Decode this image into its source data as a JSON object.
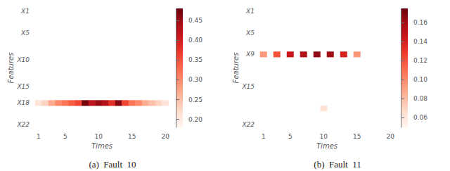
{
  "chart_data": [
    {
      "type": "heatmap",
      "title": "(a)  Fault  10",
      "xlabel": "Times",
      "ylabel": "Features",
      "grid": false,
      "x": [
        "1",
        null,
        null,
        null,
        "5",
        null,
        null,
        null,
        null,
        "10",
        null,
        null,
        null,
        null,
        "15",
        null,
        null,
        null,
        null,
        "20"
      ],
      "y": [
        "X1",
        null,
        null,
        null,
        "X5",
        null,
        null,
        null,
        null,
        "X10",
        null,
        null,
        null,
        null,
        "X15",
        null,
        null,
        "X18",
        null,
        null,
        null,
        "X22"
      ],
      "values": [
        [
          null,
          null,
          null,
          null,
          null,
          null,
          null,
          null,
          null,
          null,
          null,
          null,
          null,
          null,
          null,
          null,
          null,
          null,
          null,
          null
        ],
        [
          null,
          null,
          null,
          null,
          null,
          null,
          null,
          null,
          null,
          null,
          null,
          null,
          null,
          null,
          null,
          null,
          null,
          null,
          null,
          null
        ],
        [
          null,
          null,
          null,
          null,
          null,
          null,
          null,
          null,
          null,
          null,
          null,
          null,
          null,
          null,
          null,
          null,
          null,
          null,
          null,
          null
        ],
        [
          null,
          null,
          null,
          null,
          null,
          null,
          null,
          null,
          null,
          null,
          null,
          null,
          null,
          null,
          null,
          null,
          null,
          null,
          null,
          null
        ],
        [
          null,
          null,
          null,
          null,
          null,
          null,
          null,
          null,
          null,
          null,
          null,
          null,
          null,
          null,
          null,
          null,
          null,
          null,
          null,
          null
        ],
        [
          null,
          null,
          null,
          null,
          null,
          null,
          null,
          null,
          null,
          null,
          null,
          null,
          null,
          null,
          null,
          null,
          null,
          null,
          null,
          null
        ],
        [
          null,
          null,
          null,
          null,
          null,
          null,
          null,
          null,
          null,
          null,
          null,
          null,
          null,
          null,
          null,
          null,
          null,
          null,
          null,
          null
        ],
        [
          null,
          null,
          null,
          null,
          null,
          null,
          null,
          null,
          null,
          null,
          null,
          null,
          null,
          null,
          null,
          null,
          null,
          null,
          null,
          null
        ],
        [
          null,
          null,
          null,
          null,
          null,
          null,
          null,
          null,
          null,
          null,
          null,
          null,
          null,
          null,
          null,
          null,
          null,
          null,
          null,
          null
        ],
        [
          null,
          null,
          null,
          null,
          null,
          null,
          null,
          null,
          null,
          null,
          null,
          null,
          null,
          null,
          null,
          null,
          null,
          null,
          null,
          null
        ],
        [
          null,
          null,
          null,
          null,
          null,
          null,
          null,
          null,
          null,
          null,
          null,
          null,
          null,
          null,
          null,
          null,
          null,
          null,
          null,
          null
        ],
        [
          null,
          null,
          null,
          null,
          null,
          null,
          null,
          null,
          null,
          null,
          null,
          null,
          null,
          null,
          null,
          null,
          null,
          null,
          null,
          null
        ],
        [
          null,
          null,
          null,
          null,
          null,
          null,
          null,
          null,
          null,
          null,
          null,
          null,
          null,
          null,
          null,
          null,
          null,
          null,
          null,
          null
        ],
        [
          null,
          null,
          null,
          null,
          null,
          null,
          null,
          null,
          null,
          null,
          null,
          null,
          null,
          null,
          null,
          null,
          null,
          null,
          null,
          null
        ],
        [
          null,
          null,
          null,
          null,
          null,
          null,
          null,
          null,
          null,
          null,
          null,
          null,
          null,
          null,
          null,
          null,
          null,
          null,
          null,
          null
        ],
        [
          null,
          null,
          null,
          null,
          null,
          null,
          null,
          null,
          null,
          null,
          null,
          null,
          null,
          null,
          null,
          null,
          null,
          null,
          null,
          null
        ],
        [
          null,
          null,
          null,
          null,
          null,
          null,
          null,
          null,
          null,
          null,
          null,
          null,
          null,
          null,
          null,
          null,
          null,
          null,
          null,
          null
        ],
        [
          0.21,
          0.23,
          0.27,
          0.3,
          0.32,
          0.34,
          0.36,
          0.47,
          0.42,
          0.45,
          0.43,
          0.38,
          0.46,
          0.36,
          0.32,
          0.3,
          0.27,
          0.25,
          0.23,
          0.21
        ],
        [
          null,
          null,
          null,
          null,
          null,
          null,
          null,
          null,
          null,
          null,
          null,
          null,
          null,
          null,
          null,
          null,
          null,
          null,
          null,
          null
        ],
        [
          null,
          null,
          null,
          null,
          null,
          null,
          null,
          null,
          null,
          null,
          null,
          null,
          null,
          null,
          null,
          null,
          null,
          null,
          null,
          null
        ],
        [
          null,
          null,
          null,
          null,
          null,
          null,
          null,
          null,
          null,
          null,
          null,
          null,
          null,
          null,
          null,
          null,
          null,
          null,
          null,
          null
        ],
        [
          null,
          null,
          null,
          null,
          null,
          null,
          null,
          null,
          null,
          null,
          null,
          null,
          null,
          null,
          null,
          null,
          null,
          null,
          null,
          null
        ]
      ],
      "color_range": [
        0.18,
        0.48
      ],
      "color_ticks": [
        {
          "value": 0.2,
          "label": "0.20"
        },
        0.25,
        {
          "value": 0.3,
          "label": "0.30"
        },
        0.35,
        {
          "value": 0.4,
          "label": "0.40"
        },
        0.45
      ]
    },
    {
      "type": "heatmap",
      "title": "(b)  Fault  11",
      "xlabel": "Times",
      "ylabel": "Features",
      "grid": false,
      "x": [
        "1",
        null,
        null,
        null,
        "5",
        null,
        null,
        null,
        null,
        "10",
        null,
        null,
        null,
        null,
        "15",
        null,
        null,
        null,
        null,
        "20"
      ],
      "y": [
        "X1",
        null,
        null,
        null,
        "X5",
        null,
        null,
        null,
        "X9",
        null,
        null,
        null,
        null,
        null,
        "X15",
        null,
        null,
        null,
        null,
        null,
        null,
        "X22"
      ],
      "values": [
        [
          null,
          null,
          null,
          null,
          null,
          null,
          null,
          null,
          null,
          null,
          null,
          null,
          null,
          null,
          null,
          null,
          null,
          null,
          null,
          null
        ],
        [
          null,
          null,
          null,
          null,
          null,
          null,
          null,
          null,
          null,
          null,
          null,
          null,
          null,
          null,
          null,
          null,
          null,
          null,
          null,
          null
        ],
        [
          null,
          null,
          null,
          null,
          null,
          null,
          null,
          null,
          null,
          null,
          null,
          null,
          null,
          null,
          null,
          null,
          null,
          null,
          null,
          null
        ],
        [
          null,
          null,
          null,
          null,
          null,
          null,
          null,
          null,
          null,
          null,
          null,
          null,
          null,
          null,
          null,
          null,
          null,
          null,
          null,
          null
        ],
        [
          null,
          null,
          null,
          null,
          null,
          null,
          null,
          null,
          null,
          null,
          null,
          null,
          null,
          null,
          null,
          null,
          null,
          null,
          null,
          null
        ],
        [
          null,
          null,
          null,
          null,
          null,
          null,
          null,
          null,
          null,
          null,
          null,
          null,
          null,
          null,
          null,
          null,
          null,
          null,
          null,
          null
        ],
        [
          null,
          null,
          null,
          null,
          null,
          null,
          null,
          null,
          null,
          null,
          null,
          null,
          null,
          null,
          null,
          null,
          null,
          null,
          null,
          null
        ],
        [
          null,
          null,
          null,
          null,
          null,
          null,
          null,
          null,
          null,
          null,
          null,
          null,
          null,
          null,
          null,
          null,
          null,
          null,
          null,
          null
        ],
        [
          0.095,
          null,
          0.12,
          null,
          0.145,
          null,
          0.155,
          null,
          0.165,
          null,
          0.16,
          null,
          0.14,
          null,
          0.095,
          null,
          null,
          null,
          null,
          null
        ],
        [
          null,
          null,
          null,
          null,
          null,
          null,
          null,
          null,
          null,
          null,
          null,
          null,
          null,
          null,
          null,
          null,
          null,
          null,
          null,
          null
        ],
        [
          null,
          null,
          null,
          null,
          null,
          null,
          null,
          null,
          null,
          null,
          null,
          null,
          null,
          null,
          null,
          null,
          null,
          null,
          null,
          null
        ],
        [
          null,
          null,
          null,
          null,
          null,
          null,
          null,
          null,
          null,
          null,
          null,
          null,
          null,
          null,
          null,
          null,
          null,
          null,
          null,
          null
        ],
        [
          null,
          null,
          null,
          null,
          null,
          null,
          null,
          null,
          null,
          null,
          null,
          null,
          null,
          null,
          null,
          null,
          null,
          null,
          null,
          null
        ],
        [
          null,
          null,
          null,
          null,
          null,
          null,
          null,
          null,
          null,
          null,
          null,
          null,
          null,
          null,
          null,
          null,
          null,
          null,
          null,
          null
        ],
        [
          null,
          null,
          null,
          null,
          null,
          null,
          null,
          null,
          null,
          null,
          null,
          null,
          null,
          null,
          null,
          null,
          null,
          null,
          null,
          null
        ],
        [
          null,
          null,
          null,
          null,
          null,
          null,
          null,
          null,
          null,
          null,
          null,
          null,
          null,
          null,
          null,
          null,
          null,
          null,
          null,
          null
        ],
        [
          null,
          null,
          null,
          null,
          null,
          null,
          null,
          null,
          null,
          null,
          null,
          null,
          null,
          null,
          null,
          null,
          null,
          null,
          null,
          null
        ],
        [
          null,
          null,
          null,
          null,
          null,
          null,
          null,
          null,
          null,
          null,
          null,
          null,
          null,
          null,
          null,
          null,
          null,
          null,
          null,
          null
        ],
        [
          null,
          null,
          null,
          null,
          null,
          null,
          null,
          null,
          null,
          0.063,
          null,
          null,
          null,
          null,
          null,
          null,
          null,
          null,
          null,
          null
        ],
        [
          null,
          null,
          null,
          null,
          null,
          null,
          null,
          null,
          null,
          null,
          null,
          null,
          null,
          null,
          null,
          null,
          null,
          null,
          null,
          null
        ],
        [
          null,
          null,
          null,
          null,
          null,
          null,
          null,
          null,
          null,
          null,
          null,
          null,
          null,
          null,
          null,
          null,
          null,
          null,
          null,
          null
        ],
        [
          null,
          null,
          null,
          null,
          null,
          null,
          null,
          null,
          null,
          null,
          null,
          null,
          null,
          null,
          null,
          null,
          null,
          null,
          null,
          null
        ]
      ],
      "color_range": [
        0.05,
        0.175
      ],
      "color_ticks": [
        0.06,
        0.08,
        {
          "value": 0.1,
          "label": "0.10"
        },
        0.12,
        0.14,
        0.16
      ]
    }
  ]
}
